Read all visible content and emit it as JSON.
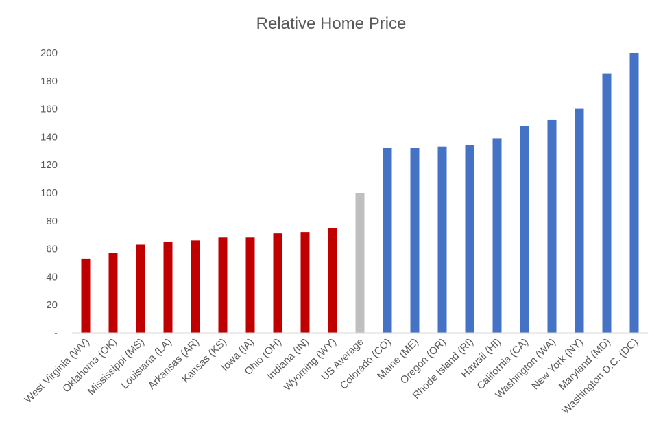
{
  "chart_data": {
    "type": "bar",
    "title": "Relative Home Price",
    "xlabel": "",
    "ylabel": "",
    "ylim": [
      0,
      200
    ],
    "yticks": [
      0,
      20,
      40,
      60,
      80,
      100,
      120,
      140,
      160,
      180,
      200
    ],
    "ytick_labels": [
      "-",
      "20",
      "40",
      "60",
      "80",
      "100",
      "120",
      "140",
      "160",
      "180",
      "200"
    ],
    "grid": false,
    "categories": [
      "West Virginia (WV)",
      "Oklahoma (OK)",
      "Mississippi (MS)",
      "Louisiana (LA)",
      "Arkansas (AR)",
      "Kansas (KS)",
      "Iowa (IA)",
      "Ohio (OH)",
      "Indiana (IN)",
      "Wyoming (WY)",
      "US Average",
      "Colorado (CO)",
      "Maine (ME)",
      "Oregon (OR)",
      "Rhode Island (RI)",
      "Hawaii (HI)",
      "California (CA)",
      "Washington (WA)",
      "New York (NY)",
      "Maryland (MD)",
      "Washington D.C. (DC)"
    ],
    "values": [
      53,
      57,
      63,
      65,
      66,
      68,
      68,
      71,
      72,
      75,
      100,
      132,
      132,
      133,
      134,
      139,
      148,
      152,
      160,
      185,
      200
    ],
    "colors": [
      "#c00000",
      "#c00000",
      "#c00000",
      "#c00000",
      "#c00000",
      "#c00000",
      "#c00000",
      "#c00000",
      "#c00000",
      "#c00000",
      "#bfbfbf",
      "#4472c4",
      "#4472c4",
      "#4472c4",
      "#4472c4",
      "#4472c4",
      "#4472c4",
      "#4472c4",
      "#4472c4",
      "#4472c4",
      "#4472c4"
    ],
    "axis_color": "#d9d9d9"
  }
}
